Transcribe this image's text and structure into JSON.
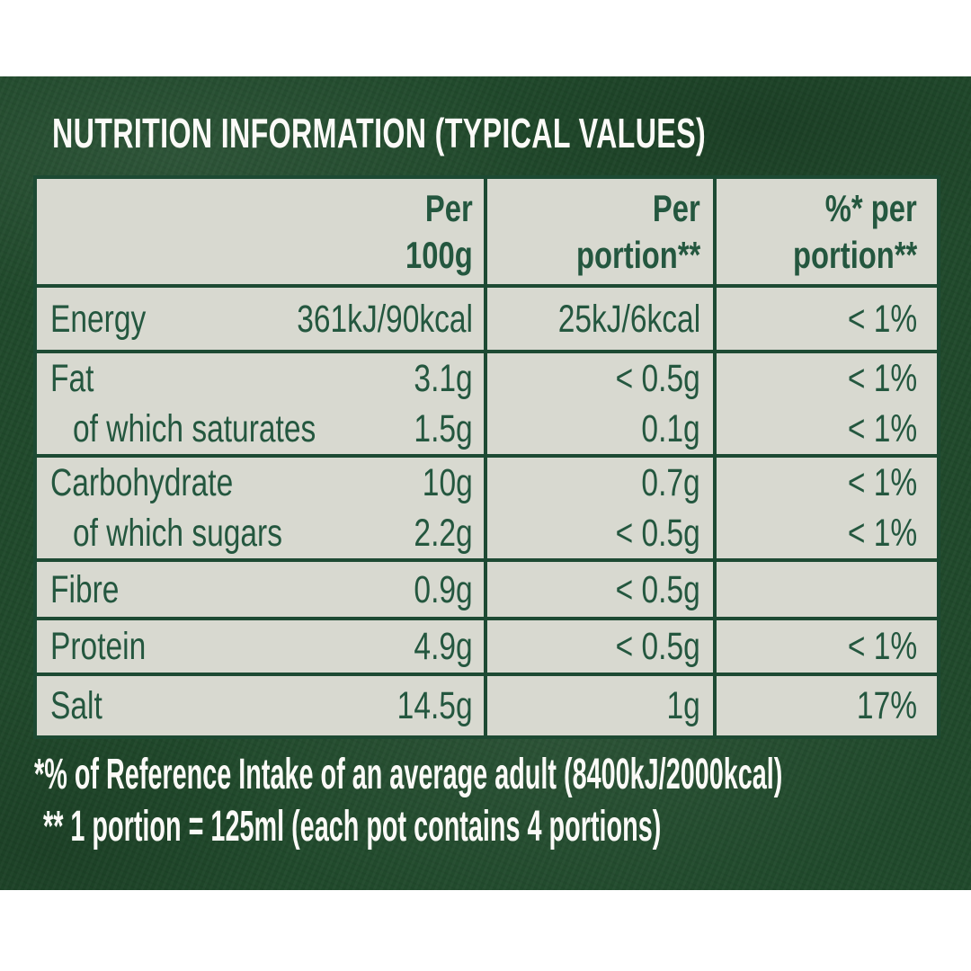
{
  "title": "NUTRITION INFORMATION (TYPICAL VALUES)",
  "table": {
    "header": {
      "per100g": [
        "Per",
        "100g"
      ],
      "perPortion": [
        "Per",
        "portion**"
      ],
      "pctPortion": [
        "%* per",
        "portion**"
      ]
    },
    "rows": [
      {
        "lines": [
          {
            "label": "Energy",
            "per100g": "361kJ/90kcal",
            "portion": "25kJ/6kcal",
            "pct": "< 1%"
          }
        ]
      },
      {
        "lines": [
          {
            "label": "Fat",
            "per100g": "3.1g",
            "portion": "< 0.5g",
            "pct": "< 1%"
          },
          {
            "label": "of which saturates",
            "per100g": "1.5g",
            "portion": "0.1g",
            "pct": "< 1%"
          }
        ]
      },
      {
        "lines": [
          {
            "label": "Carbohydrate",
            "per100g": "10g",
            "portion": "0.7g",
            "pct": "< 1%"
          },
          {
            "label": "of which sugars",
            "per100g": "2.2g",
            "portion": "< 0.5g",
            "pct": "< 1%"
          }
        ]
      },
      {
        "lines": [
          {
            "label": "Fibre",
            "per100g": "0.9g",
            "portion": "< 0.5g",
            "pct": ""
          }
        ]
      },
      {
        "lines": [
          {
            "label": "Protein",
            "per100g": "4.9g",
            "portion": "< 0.5g",
            "pct": "< 1%"
          }
        ]
      },
      {
        "lines": [
          {
            "label": "Salt",
            "per100g": "14.5g",
            "portion": "1g",
            "pct": "17%"
          }
        ]
      }
    ]
  },
  "footnotes": [
    "*% of Reference Intake of an average adult (8400kJ/2000kcal)",
    "** 1 portion = 125ml (each pot contains 4 portions)"
  ],
  "colors": {
    "panel_green": "#20492b",
    "cell_background": "#d8d9d0",
    "text_green": "#24573f",
    "border_green": "#1d4a33",
    "text_white": "#fbfaf7"
  }
}
